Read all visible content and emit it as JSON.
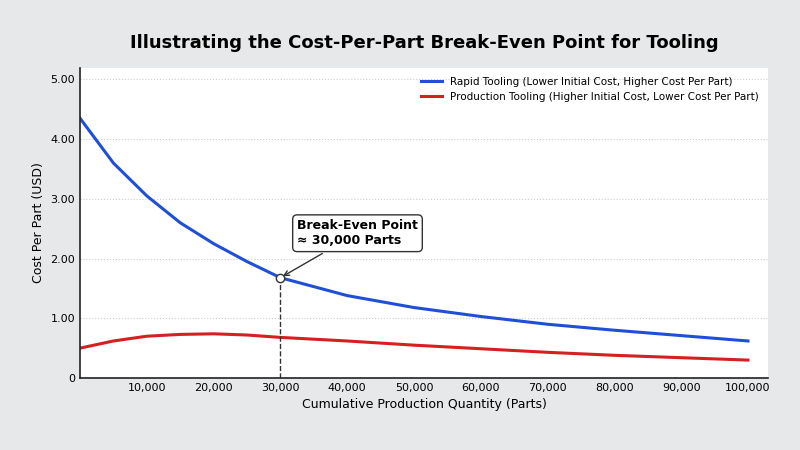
{
  "chart_data": {
    "type": "line",
    "title": "Illustrating the Cost-Per-Part Break-Even Point for Tooling",
    "x_label": "Cumulative Production Quantity (Parts)",
    "y_label": "Cost Per Part (USD)",
    "x": [
      0,
      5000,
      10000,
      15000,
      20000,
      25000,
      30000,
      40000,
      50000,
      60000,
      70000,
      80000,
      90000,
      100000
    ],
    "series": [
      {
        "name": "Rapid Tooling (Lower Initial Cost, Higher Cost Per Part)",
        "color": "#1f4fd6",
        "values": [
          4.35,
          3.6,
          3.05,
          2.6,
          2.25,
          1.95,
          1.68,
          1.38,
          1.18,
          1.03,
          0.9,
          0.8,
          0.71,
          0.62
        ]
      },
      {
        "name": "Production Tooling (Higher Initial Cost, Lower Cost Per Part)",
        "color": "#d42020",
        "values": [
          0.5,
          0.62,
          0.7,
          0.73,
          0.74,
          0.72,
          0.68,
          0.62,
          0.55,
          0.49,
          0.43,
          0.38,
          0.34,
          0.3
        ]
      }
    ],
    "xlim": [
      0,
      103000
    ],
    "ylim": [
      0,
      5.2
    ],
    "xticks": [
      {
        "value": 10000,
        "label": "10,000"
      },
      {
        "value": 20000,
        "label": "20,000"
      },
      {
        "value": 30000,
        "label": "30,000"
      },
      {
        "value": 40000,
        "label": "40,000"
      },
      {
        "value": 50000,
        "label": "50,000"
      },
      {
        "value": 60000,
        "label": "60,000"
      },
      {
        "value": 70000,
        "label": "70,000"
      },
      {
        "value": 80000,
        "label": "80,000"
      },
      {
        "value": 90000,
        "label": "90,000"
      },
      {
        "value": 100000,
        "label": "100,000"
      }
    ],
    "yticks": [
      0,
      {
        "value": 1,
        "label": "1.00"
      },
      {
        "value": 2,
        "label": "2.00"
      },
      {
        "value": 3,
        "label": "3.00"
      },
      {
        "value": 4,
        "label": "4.00"
      },
      {
        "value": 5,
        "label": "5.00"
      }
    ],
    "grid": true,
    "legend": "upper right",
    "annotations": [
      {
        "text": "Break-Even Point\n≈ 30,000 Parts",
        "x": 30000,
        "y": 1.68
      }
    ]
  }
}
